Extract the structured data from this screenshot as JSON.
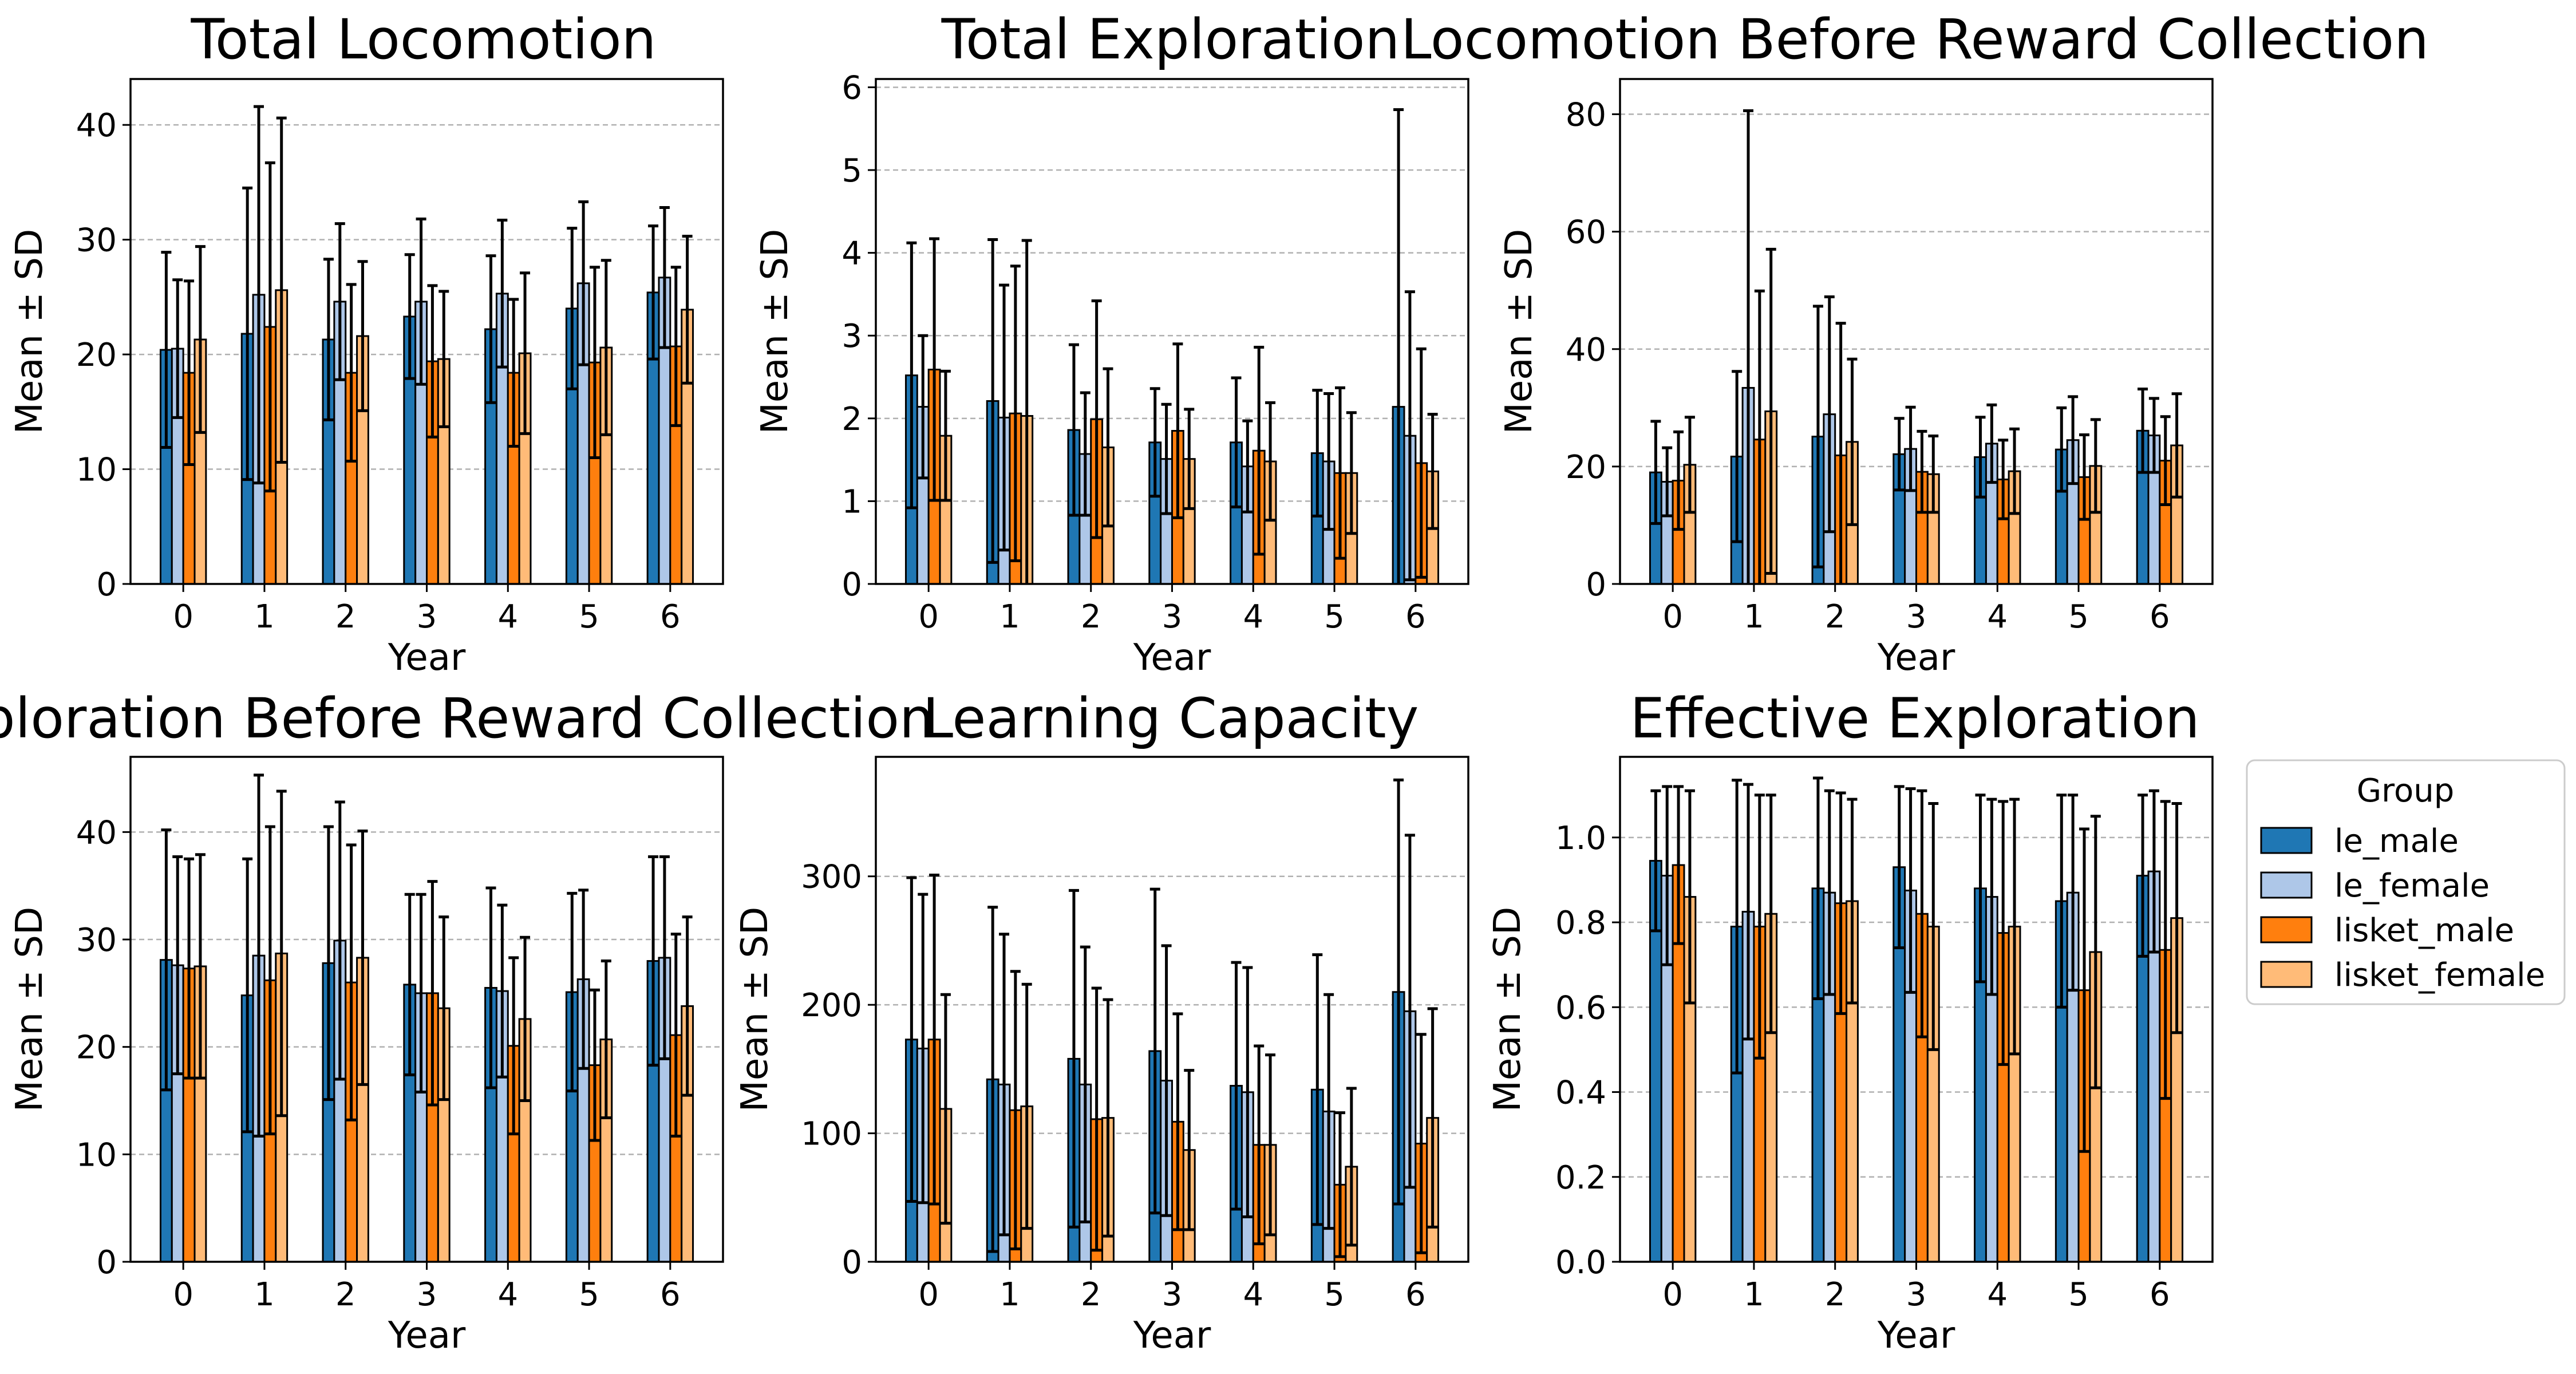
{
  "figure": {
    "legend": {
      "title": "Group",
      "placement": "right"
    }
  },
  "chart_data": [
    {
      "type": "bar",
      "title": "Total Locomotion",
      "xlabel": "Year",
      "ylabel": "Mean ± SD",
      "categories": [
        "0",
        "1",
        "2",
        "3",
        "4",
        "5",
        "6"
      ],
      "ylim": [
        0,
        44
      ],
      "yticks": [
        0,
        10,
        20,
        30,
        40
      ],
      "grid": "y-dashed",
      "error_bars": "SD",
      "series": [
        {
          "name": "le_male",
          "color": "#1f77b4",
          "values": [
            20.4,
            21.8,
            21.3,
            23.3,
            22.2,
            24.0,
            25.4
          ],
          "sd": [
            8.5,
            12.7,
            7.0,
            5.4,
            6.4,
            7.0,
            5.8
          ]
        },
        {
          "name": "le_female",
          "color": "#aec7e8",
          "values": [
            20.5,
            25.2,
            24.6,
            24.6,
            25.3,
            26.2,
            26.7
          ],
          "sd": [
            6.0,
            16.4,
            6.8,
            7.2,
            6.4,
            7.1,
            6.1
          ]
        },
        {
          "name": "lisket_male",
          "color": "#ff7f0e",
          "values": [
            18.4,
            22.4,
            18.4,
            19.4,
            18.4,
            19.3,
            20.7
          ],
          "sd": [
            8.0,
            14.3,
            7.7,
            6.6,
            6.4,
            8.3,
            6.9
          ]
        },
        {
          "name": "lisket_female",
          "color": "#ffbb78",
          "values": [
            21.3,
            25.6,
            21.6,
            19.6,
            20.1,
            20.6,
            23.9
          ],
          "sd": [
            8.1,
            15.0,
            6.5,
            5.9,
            7.0,
            7.6,
            6.4
          ]
        }
      ]
    },
    {
      "type": "bar",
      "title": "Total Exploration",
      "xlabel": "Year",
      "ylabel": "Mean ± SD",
      "categories": [
        "0",
        "1",
        "2",
        "3",
        "4",
        "5",
        "6"
      ],
      "ylim": [
        0,
        6.1
      ],
      "yticks": [
        0,
        1,
        2,
        3,
        4,
        5,
        6
      ],
      "grid": "y-dashed",
      "error_bars": "SD",
      "series": [
        {
          "name": "le_male",
          "color": "#1f77b4",
          "values": [
            2.52,
            2.21,
            1.86,
            1.71,
            1.71,
            1.58,
            2.14
          ],
          "sd": [
            1.6,
            1.95,
            1.03,
            0.65,
            0.78,
            0.76,
            3.59
          ]
        },
        {
          "name": "le_female",
          "color": "#aec7e8",
          "values": [
            2.14,
            2.01,
            1.57,
            1.51,
            1.42,
            1.48,
            1.79
          ],
          "sd": [
            0.86,
            1.6,
            0.74,
            0.66,
            0.55,
            0.82,
            1.74
          ]
        },
        {
          "name": "lisket_male",
          "color": "#ff7f0e",
          "values": [
            2.59,
            2.06,
            1.99,
            1.85,
            1.61,
            1.34,
            1.46
          ],
          "sd": [
            1.58,
            1.78,
            1.43,
            1.05,
            1.25,
            1.03,
            1.38
          ]
        },
        {
          "name": "lisket_female",
          "color": "#ffbb78",
          "values": [
            1.79,
            2.03,
            1.65,
            1.51,
            1.48,
            1.34,
            1.36
          ],
          "sd": [
            0.78,
            2.12,
            0.95,
            0.6,
            0.71,
            0.73,
            0.69
          ]
        }
      ]
    },
    {
      "type": "bar",
      "title": "Locomotion Before Reward Collection",
      "xlabel": "Year",
      "ylabel": "Mean ± SD",
      "categories": [
        "0",
        "1",
        "2",
        "3",
        "4",
        "5",
        "6"
      ],
      "ylim": [
        0,
        86
      ],
      "yticks": [
        0,
        20,
        40,
        60,
        80
      ],
      "grid": "y-dashed",
      "error_bars": "SD",
      "series": [
        {
          "name": "le_male",
          "color": "#1f77b4",
          "values": [
            19.0,
            21.7,
            25.1,
            22.1,
            21.6,
            22.9,
            26.1
          ],
          "sd": [
            8.7,
            14.5,
            22.2,
            6.1,
            6.8,
            7.1,
            7.1
          ]
        },
        {
          "name": "le_female",
          "color": "#aec7e8",
          "values": [
            17.4,
            33.4,
            28.9,
            23.0,
            23.9,
            24.5,
            25.3
          ],
          "sd": [
            5.8,
            47.2,
            20.0,
            7.1,
            6.6,
            7.4,
            6.3
          ]
        },
        {
          "name": "lisket_male",
          "color": "#ff7f0e",
          "values": [
            17.6,
            24.6,
            21.9,
            19.1,
            17.8,
            18.2,
            21.0
          ],
          "sd": [
            8.3,
            25.3,
            22.5,
            6.9,
            6.7,
            7.2,
            7.5
          ]
        },
        {
          "name": "lisket_female",
          "color": "#ffbb78",
          "values": [
            20.3,
            29.4,
            24.2,
            18.7,
            19.2,
            20.1,
            23.6
          ],
          "sd": [
            8.1,
            27.6,
            14.1,
            6.5,
            7.2,
            7.9,
            8.8
          ]
        }
      ]
    },
    {
      "type": "bar",
      "title": "Exploration Before Reward Collection",
      "xlabel": "Year",
      "ylabel": "Mean ± SD",
      "categories": [
        "0",
        "1",
        "2",
        "3",
        "4",
        "5",
        "6"
      ],
      "ylim": [
        0,
        47
      ],
      "yticks": [
        0,
        10,
        20,
        30,
        40
      ],
      "grid": "y-dashed",
      "error_bars": "SD",
      "series": [
        {
          "name": "le_male",
          "color": "#1f77b4",
          "values": [
            28.1,
            24.8,
            27.8,
            25.8,
            25.5,
            25.1,
            28.0
          ],
          "sd": [
            12.1,
            12.7,
            12.7,
            8.4,
            9.3,
            9.2,
            9.7
          ]
        },
        {
          "name": "le_female",
          "color": "#aec7e8",
          "values": [
            27.6,
            28.5,
            29.9,
            25.0,
            25.2,
            26.3,
            28.3
          ],
          "sd": [
            10.1,
            16.8,
            12.9,
            9.2,
            8.0,
            8.3,
            9.4
          ]
        },
        {
          "name": "lisket_male",
          "color": "#ff7f0e",
          "values": [
            27.3,
            26.2,
            26.0,
            25.0,
            20.1,
            18.3,
            21.1
          ],
          "sd": [
            10.2,
            14.3,
            12.8,
            10.4,
            8.2,
            7.0,
            9.4
          ]
        },
        {
          "name": "lisket_female",
          "color": "#ffbb78",
          "values": [
            27.5,
            28.7,
            28.3,
            23.6,
            22.6,
            20.7,
            23.8
          ],
          "sd": [
            10.4,
            15.1,
            11.8,
            8.5,
            7.6,
            7.3,
            8.3
          ]
        }
      ]
    },
    {
      "type": "bar",
      "title": "Learning Capacity",
      "xlabel": "Year",
      "ylabel": "Mean ± SD",
      "categories": [
        "0",
        "1",
        "2",
        "3",
        "4",
        "5",
        "6"
      ],
      "ylim": [
        0,
        393
      ],
      "yticks": [
        0,
        100,
        200,
        300
      ],
      "grid": "y-dashed",
      "error_bars": "SD",
      "series": [
        {
          "name": "le_male",
          "color": "#1f77b4",
          "values": [
            173,
            142,
            158,
            164,
            137,
            134,
            210
          ],
          "sd": [
            126,
            134,
            131,
            126,
            96,
            105,
            165
          ]
        },
        {
          "name": "le_female",
          "color": "#aec7e8",
          "values": [
            166,
            138,
            138,
            141,
            132,
            117,
            195
          ],
          "sd": [
            120,
            117,
            107,
            105,
            97,
            91,
            137
          ]
        },
        {
          "name": "lisket_male",
          "color": "#ff7f0e",
          "values": [
            173,
            118,
            111,
            109,
            91,
            60,
            92
          ],
          "sd": [
            128,
            108,
            102,
            84,
            77,
            56,
            85
          ]
        },
        {
          "name": "lisket_female",
          "color": "#ffbb78",
          "values": [
            119,
            121,
            112,
            87,
            91,
            74,
            112
          ],
          "sd": [
            89,
            95,
            92,
            62,
            70,
            61,
            85
          ]
        }
      ]
    },
    {
      "type": "bar",
      "title": "Effective Exploration",
      "xlabel": "Year",
      "ylabel": "Mean ± SD",
      "categories": [
        "0",
        "1",
        "2",
        "3",
        "4",
        "5",
        "6"
      ],
      "ylim": [
        0,
        1.19
      ],
      "yticks": [
        0.0,
        0.2,
        0.4,
        0.6,
        0.8,
        1.0
      ],
      "yticklabels": [
        "0.0",
        "0.2",
        "0.4",
        "0.6",
        "0.8",
        "1.0"
      ],
      "grid": "y-dashed",
      "error_bars": "SD",
      "series": [
        {
          "name": "le_male",
          "color": "#1f77b4",
          "values": [
            0.945,
            0.79,
            0.88,
            0.93,
            0.88,
            0.85,
            0.91
          ],
          "sd": [
            0.165,
            0.345,
            0.26,
            0.19,
            0.22,
            0.25,
            0.19
          ]
        },
        {
          "name": "le_female",
          "color": "#aec7e8",
          "values": [
            0.91,
            0.825,
            0.87,
            0.875,
            0.86,
            0.87,
            0.92
          ],
          "sd": [
            0.21,
            0.3,
            0.24,
            0.24,
            0.23,
            0.23,
            0.19
          ]
        },
        {
          "name": "lisket_male",
          "color": "#ff7f0e",
          "values": [
            0.935,
            0.79,
            0.845,
            0.82,
            0.775,
            0.64,
            0.735
          ],
          "sd": [
            0.185,
            0.31,
            0.26,
            0.29,
            0.31,
            0.38,
            0.35
          ]
        },
        {
          "name": "lisket_female",
          "color": "#ffbb78",
          "values": [
            0.86,
            0.82,
            0.85,
            0.79,
            0.79,
            0.73,
            0.81
          ],
          "sd": [
            0.25,
            0.28,
            0.24,
            0.29,
            0.3,
            0.32,
            0.27
          ]
        }
      ]
    }
  ]
}
